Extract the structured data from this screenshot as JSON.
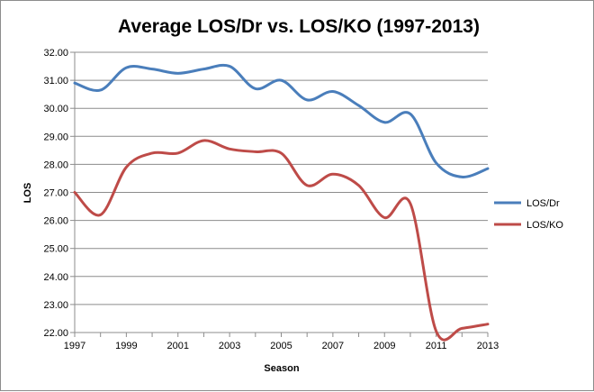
{
  "chart_data": {
    "type": "line",
    "title": "Average LOS/Dr vs. LOS/KO (1997-2013)",
    "xlabel": "Season",
    "ylabel": "LOS",
    "x": [
      1997,
      1998,
      1999,
      2000,
      2001,
      2002,
      2003,
      2004,
      2005,
      2006,
      2007,
      2008,
      2009,
      2010,
      2011,
      2012,
      2013
    ],
    "x_tick_labels": [
      "1997",
      "1999",
      "2001",
      "2003",
      "2005",
      "2007",
      "2009",
      "2011",
      "2013"
    ],
    "y_tick_labels": [
      "22.00",
      "23.00",
      "24.00",
      "25.00",
      "26.00",
      "27.00",
      "28.00",
      "29.00",
      "30.00",
      "31.00",
      "32.00"
    ],
    "xlim": [
      1997,
      2013
    ],
    "ylim": [
      22,
      32
    ],
    "grid": "horizontal",
    "legend_position": "right",
    "series": [
      {
        "name": "LOS/Dr",
        "color": "#4a7ebb",
        "values": [
          30.9,
          30.65,
          31.45,
          31.4,
          31.25,
          31.4,
          31.5,
          30.7,
          31.0,
          30.3,
          30.6,
          30.1,
          29.5,
          29.8,
          28.05,
          27.55,
          27.85
        ]
      },
      {
        "name": "LOS/KO",
        "color": "#be4b48",
        "values": [
          27.0,
          26.2,
          27.9,
          28.4,
          28.4,
          28.85,
          28.55,
          28.45,
          28.4,
          27.25,
          27.65,
          27.25,
          26.1,
          26.6,
          22.05,
          22.15,
          22.3
        ]
      }
    ]
  }
}
